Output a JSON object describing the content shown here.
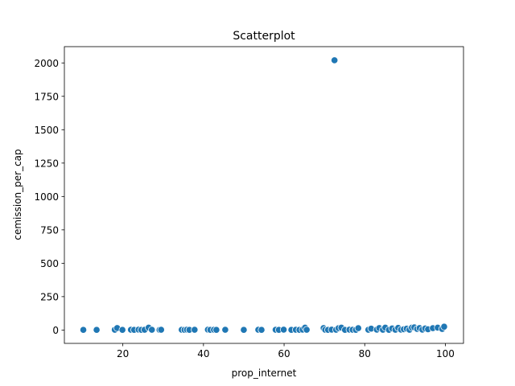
{
  "chart_data": {
    "type": "scatter",
    "title": "Scatterplot",
    "xlabel": "prop_internet",
    "ylabel": "cemission_per_cap",
    "xlim": [
      5.5,
      104.5
    ],
    "ylim": [
      -100,
      2122
    ],
    "xticks": [
      20,
      40,
      60,
      80,
      100
    ],
    "yticks": [
      0,
      250,
      500,
      750,
      1000,
      1250,
      1500,
      1750,
      2000
    ],
    "grid": false,
    "marker_color": "#1f77b4",
    "marker_edge_color": "#ffffff",
    "points": [
      {
        "x": 10.2,
        "y": 1
      },
      {
        "x": 13.5,
        "y": 1
      },
      {
        "x": 18.0,
        "y": 2
      },
      {
        "x": 18.6,
        "y": 15
      },
      {
        "x": 19.9,
        "y": 1
      },
      {
        "x": 22.0,
        "y": 2
      },
      {
        "x": 22.8,
        "y": 1
      },
      {
        "x": 23.9,
        "y": 3
      },
      {
        "x": 24.6,
        "y": 1
      },
      {
        "x": 25.4,
        "y": 2
      },
      {
        "x": 26.4,
        "y": 18
      },
      {
        "x": 27.2,
        "y": 2
      },
      {
        "x": 29.1,
        "y": 1
      },
      {
        "x": 29.5,
        "y": 2
      },
      {
        "x": 34.6,
        "y": 2
      },
      {
        "x": 35.3,
        "y": 1
      },
      {
        "x": 35.9,
        "y": 3
      },
      {
        "x": 36.5,
        "y": 1
      },
      {
        "x": 37.8,
        "y": 2
      },
      {
        "x": 41.1,
        "y": 3
      },
      {
        "x": 41.7,
        "y": 1
      },
      {
        "x": 42.6,
        "y": 2
      },
      {
        "x": 43.2,
        "y": 1
      },
      {
        "x": 45.4,
        "y": 2
      },
      {
        "x": 50.0,
        "y": 1
      },
      {
        "x": 53.6,
        "y": 2
      },
      {
        "x": 54.4,
        "y": 1
      },
      {
        "x": 57.9,
        "y": 2
      },
      {
        "x": 58.7,
        "y": 1
      },
      {
        "x": 59.9,
        "y": 3
      },
      {
        "x": 61.8,
        "y": 1
      },
      {
        "x": 62.9,
        "y": 2
      },
      {
        "x": 63.8,
        "y": 1
      },
      {
        "x": 64.6,
        "y": 3
      },
      {
        "x": 65.2,
        "y": 18
      },
      {
        "x": 65.6,
        "y": 2
      },
      {
        "x": 69.8,
        "y": 15
      },
      {
        "x": 70.2,
        "y": 2
      },
      {
        "x": 70.9,
        "y": 1
      },
      {
        "x": 71.8,
        "y": 3
      },
      {
        "x": 72.5,
        "y": 2020
      },
      {
        "x": 72.9,
        "y": 2
      },
      {
        "x": 73.5,
        "y": 14
      },
      {
        "x": 74.2,
        "y": 18
      },
      {
        "x": 75.1,
        "y": 1
      },
      {
        "x": 76.2,
        "y": 3
      },
      {
        "x": 77.0,
        "y": 2
      },
      {
        "x": 77.8,
        "y": 1
      },
      {
        "x": 78.4,
        "y": 14
      },
      {
        "x": 80.9,
        "y": 2
      },
      {
        "x": 81.6,
        "y": 10
      },
      {
        "x": 83.0,
        "y": 3
      },
      {
        "x": 83.6,
        "y": 15
      },
      {
        "x": 84.5,
        "y": 2
      },
      {
        "x": 85.1,
        "y": 18
      },
      {
        "x": 86.0,
        "y": 1
      },
      {
        "x": 86.8,
        "y": 12
      },
      {
        "x": 87.6,
        "y": 2
      },
      {
        "x": 88.3,
        "y": 16
      },
      {
        "x": 89.0,
        "y": 3
      },
      {
        "x": 89.7,
        "y": 6
      },
      {
        "x": 90.4,
        "y": 10
      },
      {
        "x": 91.1,
        "y": 2
      },
      {
        "x": 91.7,
        "y": 18
      },
      {
        "x": 92.3,
        "y": 20
      },
      {
        "x": 93.0,
        "y": 8
      },
      {
        "x": 93.6,
        "y": 15
      },
      {
        "x": 94.3,
        "y": 3
      },
      {
        "x": 95.0,
        "y": 12
      },
      {
        "x": 95.7,
        "y": 6
      },
      {
        "x": 96.9,
        "y": 14
      },
      {
        "x": 98.1,
        "y": 18
      },
      {
        "x": 99.2,
        "y": 8
      },
      {
        "x": 99.7,
        "y": 25
      }
    ]
  }
}
